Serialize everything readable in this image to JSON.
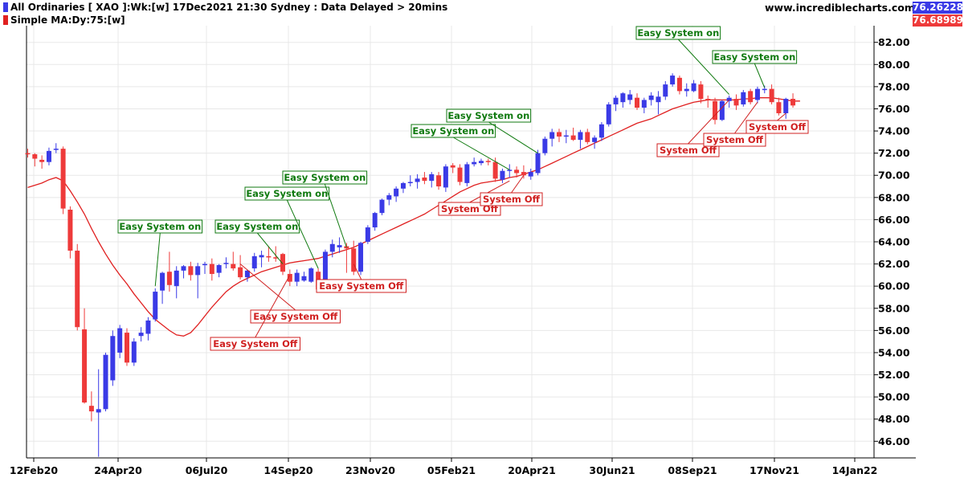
{
  "header": {
    "line1": "All Ordinaries [ XAO ]:Wk:[w]  17Dec2021 21:30 Sydney : Data Delayed > 20mins",
    "line2": "Simple MA:Dy:75:[w]",
    "site": "www.incrediblecharts.com",
    "last_price": "76.26228",
    "ma_value": "76.689895"
  },
  "colors": {
    "up": "#3a3ae6",
    "down": "#ee3a3a",
    "ma": "#e02020",
    "on": "#107a10",
    "off": "#d02020"
  },
  "chart_data": {
    "type": "candlestick",
    "series_names": [
      "All Ordinaries [ XAO ]",
      "Simple MA:Dy:75"
    ],
    "x_labels": [
      "12Feb20",
      "24Apr20",
      "06Jul20",
      "14Sep20",
      "23Nov20",
      "05Feb21",
      "20Apr21",
      "30Jun21",
      "08Sep21",
      "17Nov21",
      "14Jan22"
    ],
    "y_ticks": [
      46,
      48,
      50,
      52,
      54,
      56,
      58,
      60,
      62,
      64,
      66,
      68,
      70,
      72,
      74,
      76,
      78,
      80,
      82
    ],
    "ylim": [
      44.5,
      83.5
    ],
    "candles": [
      [
        72.0,
        72.4,
        71.6,
        71.9
      ],
      [
        71.9,
        72.0,
        70.8,
        71.5
      ],
      [
        71.4,
        71.8,
        70.6,
        71.2
      ],
      [
        71.2,
        72.5,
        70.9,
        72.2
      ],
      [
        72.3,
        72.9,
        72.0,
        72.4
      ],
      [
        72.4,
        72.6,
        66.5,
        67.0
      ],
      [
        66.9,
        67.2,
        62.5,
        63.2
      ],
      [
        63.2,
        63.8,
        56.0,
        56.3
      ],
      [
        56.1,
        58.0,
        49.4,
        49.5
      ],
      [
        49.2,
        50.5,
        47.8,
        48.7
      ],
      [
        48.6,
        52.5,
        44.6,
        48.9
      ],
      [
        48.9,
        54.0,
        48.7,
        53.8
      ],
      [
        51.5,
        56.0,
        51.0,
        55.5
      ],
      [
        54.0,
        56.5,
        53.5,
        56.2
      ],
      [
        55.8,
        56.2,
        52.8,
        53.1
      ],
      [
        53.1,
        55.3,
        52.8,
        55.0
      ],
      [
        55.5,
        56.3,
        55.0,
        55.8
      ],
      [
        55.7,
        57.2,
        55.1,
        56.9
      ],
      [
        57.0,
        59.8,
        56.8,
        59.5
      ],
      [
        59.6,
        61.3,
        58.4,
        61.2
      ],
      [
        61.3,
        63.1,
        59.5,
        60.1
      ],
      [
        60.0,
        61.8,
        58.9,
        61.4
      ],
      [
        61.4,
        61.9,
        60.7,
        61.8
      ],
      [
        61.8,
        62.2,
        60.5,
        61.0
      ],
      [
        61.0,
        62.1,
        58.9,
        61.8
      ],
      [
        61.9,
        62.2,
        61.1,
        62.0
      ],
      [
        62.0,
        62.5,
        60.5,
        61.1
      ],
      [
        61.2,
        62.0,
        60.8,
        61.9
      ],
      [
        62.0,
        62.6,
        61.6,
        62.1
      ],
      [
        62.0,
        63.1,
        61.4,
        61.6
      ],
      [
        61.7,
        62.8,
        60.6,
        60.8
      ],
      [
        60.8,
        61.5,
        60.4,
        61.4
      ],
      [
        61.6,
        63.0,
        61.3,
        62.7
      ],
      [
        62.6,
        63.2,
        61.7,
        62.8
      ],
      [
        62.7,
        63.6,
        62.2,
        62.6
      ],
      [
        62.6,
        63.6,
        62.2,
        62.5
      ],
      [
        62.9,
        63.0,
        61.0,
        61.3
      ],
      [
        61.1,
        61.5,
        60.0,
        60.4
      ],
      [
        60.4,
        61.5,
        60.0,
        61.2
      ],
      [
        60.5,
        61.3,
        60.4,
        60.9
      ],
      [
        60.4,
        61.7,
        60.3,
        61.6
      ],
      [
        61.3,
        61.6,
        59.4,
        59.7
      ],
      [
        59.8,
        63.3,
        59.6,
        63.1
      ],
      [
        63.1,
        64.2,
        62.6,
        63.8
      ],
      [
        63.5,
        64.4,
        63.0,
        63.7
      ],
      [
        63.6,
        63.9,
        61.2,
        63.4
      ],
      [
        63.4,
        64.1,
        61.0,
        61.3
      ],
      [
        61.3,
        64.0,
        61.0,
        63.9
      ],
      [
        64.0,
        65.5,
        63.8,
        65.3
      ],
      [
        65.3,
        66.7,
        65.0,
        66.6
      ],
      [
        66.6,
        67.9,
        66.4,
        67.8
      ],
      [
        67.8,
        68.4,
        67.3,
        68.2
      ],
      [
        68.1,
        69.0,
        67.6,
        68.8
      ],
      [
        68.8,
        69.4,
        68.4,
        69.3
      ],
      [
        69.3,
        70.0,
        69.0,
        69.4
      ],
      [
        69.4,
        70.1,
        68.8,
        69.7
      ],
      [
        69.8,
        70.3,
        69.2,
        69.5
      ],
      [
        69.5,
        70.3,
        68.9,
        70.1
      ],
      [
        70.0,
        70.3,
        68.7,
        69.0
      ],
      [
        68.9,
        71.0,
        68.5,
        70.8
      ],
      [
        70.9,
        71.1,
        70.2,
        70.7
      ],
      [
        70.7,
        71.0,
        69.1,
        69.4
      ],
      [
        69.3,
        71.2,
        69.0,
        71.0
      ],
      [
        71.0,
        71.6,
        70.8,
        71.2
      ],
      [
        71.1,
        71.5,
        70.9,
        71.3
      ],
      [
        71.3,
        71.5,
        70.9,
        71.2
      ],
      [
        71.2,
        71.6,
        69.4,
        69.7
      ],
      [
        69.6,
        70.6,
        69.3,
        70.4
      ],
      [
        70.4,
        71.0,
        69.8,
        70.5
      ],
      [
        70.5,
        70.8,
        69.8,
        70.2
      ],
      [
        70.3,
        70.9,
        69.7,
        70.0
      ],
      [
        69.9,
        70.6,
        69.6,
        70.3
      ],
      [
        70.2,
        72.3,
        70.0,
        72.0
      ],
      [
        72.0,
        73.5,
        71.8,
        73.3
      ],
      [
        73.3,
        74.2,
        72.6,
        73.9
      ],
      [
        73.9,
        74.2,
        73.0,
        73.5
      ],
      [
        73.5,
        74.1,
        72.9,
        73.6
      ],
      [
        73.6,
        74.3,
        73.1,
        73.2
      ],
      [
        73.2,
        74.1,
        72.4,
        73.9
      ],
      [
        73.9,
        74.2,
        72.8,
        73.0
      ],
      [
        73.0,
        73.6,
        72.4,
        73.4
      ],
      [
        73.4,
        74.8,
        73.1,
        74.6
      ],
      [
        74.6,
        76.6,
        74.4,
        76.4
      ],
      [
        76.4,
        77.2,
        75.8,
        77.0
      ],
      [
        76.6,
        77.5,
        76.1,
        77.4
      ],
      [
        76.8,
        77.7,
        76.4,
        77.3
      ],
      [
        77.0,
        77.4,
        75.9,
        76.1
      ],
      [
        76.1,
        77.0,
        75.6,
        76.8
      ],
      [
        76.8,
        77.5,
        76.3,
        77.2
      ],
      [
        76.6,
        77.6,
        75.5,
        77.1
      ],
      [
        77.1,
        78.5,
        76.8,
        78.2
      ],
      [
        78.2,
        79.2,
        78.0,
        79.0
      ],
      [
        78.8,
        79.0,
        77.3,
        77.6
      ],
      [
        77.6,
        78.3,
        77.1,
        77.8
      ],
      [
        77.6,
        78.6,
        77.5,
        78.3
      ],
      [
        78.2,
        78.5,
        76.5,
        76.9
      ],
      [
        76.9,
        77.2,
        76.1,
        76.8
      ],
      [
        76.7,
        77.0,
        74.6,
        75.0
      ],
      [
        75.0,
        76.8,
        74.9,
        76.7
      ],
      [
        76.7,
        77.2,
        76.1,
        77.0
      ],
      [
        76.9,
        77.3,
        75.9,
        76.3
      ],
      [
        76.4,
        77.7,
        76.2,
        77.5
      ],
      [
        77.6,
        77.8,
        76.4,
        76.6
      ],
      [
        76.8,
        78.0,
        76.5,
        77.8
      ],
      [
        77.7,
        78.1,
        77.4,
        77.8
      ],
      [
        77.8,
        78.2,
        76.4,
        76.6
      ],
      [
        76.6,
        77.0,
        75.4,
        75.6
      ],
      [
        75.6,
        77.0,
        75.1,
        76.9
      ],
      [
        76.9,
        77.4,
        76.1,
        76.3
      ]
    ],
    "moving_average": [
      68.9,
      69.1,
      69.3,
      69.6,
      69.8,
      69.5,
      68.6,
      67.6,
      66.5,
      65.2,
      64.0,
      62.9,
      61.9,
      61.0,
      60.2,
      59.3,
      58.5,
      57.7,
      57.0,
      56.5,
      56.0,
      55.6,
      55.5,
      55.8,
      56.5,
      57.3,
      58.1,
      58.8,
      59.5,
      60.0,
      60.4,
      60.7,
      61.0,
      61.3,
      61.5,
      61.7,
      61.9,
      62.1,
      62.2,
      62.3,
      62.4,
      62.5,
      62.7,
      62.9,
      63.1,
      63.3,
      63.5,
      63.8,
      64.1,
      64.4,
      64.7,
      65.0,
      65.3,
      65.6,
      65.9,
      66.2,
      66.5,
      66.9,
      67.3,
      67.7,
      68.1,
      68.5,
      68.8,
      69.1,
      69.3,
      69.4,
      69.5,
      69.6,
      69.8,
      69.9,
      70.1,
      70.3,
      70.5,
      70.8,
      71.1,
      71.4,
      71.7,
      72.0,
      72.3,
      72.6,
      72.9,
      73.2,
      73.5,
      73.8,
      74.1,
      74.4,
      74.7,
      74.9,
      75.1,
      75.4,
      75.7,
      76.0,
      76.2,
      76.4,
      76.6,
      76.7,
      76.8,
      76.8,
      76.8,
      76.8,
      76.8,
      76.9,
      76.9,
      77.0,
      77.0,
      77.0,
      76.9,
      76.8,
      76.7,
      76.7
    ],
    "annotations": [
      {
        "text": "Easy System on",
        "kind": "on",
        "bar": 18,
        "price": 60.0
      },
      {
        "text": "Easy System Off",
        "kind": "off",
        "bar": 30,
        "price": 62.0
      },
      {
        "text": "Easy System on",
        "kind": "on",
        "bar": 36,
        "price": 62.0
      },
      {
        "text": "Easy System Off",
        "kind": "off",
        "bar": 37,
        "price": 61.0
      },
      {
        "text": "Easy System on",
        "kind": "on",
        "bar": 41,
        "price": 61.6
      },
      {
        "text": "Easy System on",
        "kind": "on",
        "bar": 45,
        "price": 63.5
      },
      {
        "text": "Easy System Off",
        "kind": "off",
        "bar": 46,
        "price": 62.0
      },
      {
        "text": "Easy System on",
        "kind": "on",
        "bar": 68,
        "price": 70.5
      },
      {
        "text": "System Off",
        "kind": "off",
        "bar": 68,
        "price": 69.5
      },
      {
        "text": "Easy System on",
        "kind": "on",
        "bar": 72,
        "price": 72.0
      },
      {
        "text": "System Off",
        "kind": "off",
        "bar": 70,
        "price": 70.0
      },
      {
        "text": "Easy System on",
        "kind": "on",
        "bar": 99,
        "price": 77.3
      },
      {
        "text": "System Off",
        "kind": "off",
        "bar": 99,
        "price": 76.8
      },
      {
        "text": "Easy System on",
        "kind": "on",
        "bar": 104,
        "price": 77.9
      },
      {
        "text": "System Off",
        "kind": "off",
        "bar": 103,
        "price": 76.6
      },
      {
        "text": "System Off",
        "kind": "off",
        "bar": 107,
        "price": 75.6
      }
    ]
  }
}
